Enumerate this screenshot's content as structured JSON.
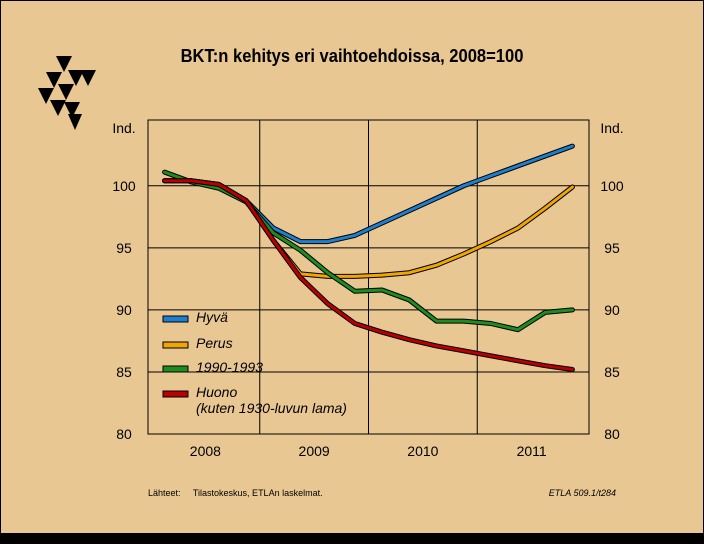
{
  "chart_data": {
    "type": "line",
    "title": "BKT:n kehitys eri vaihtoehdoissa, 2008=100",
    "ylabel": "Ind.",
    "y2label": "Ind.",
    "ylim": [
      80,
      105
    ],
    "yticks": [
      80,
      85,
      90,
      95,
      100
    ],
    "x_tick_labels": [
      "2008",
      "2009",
      "2010",
      "2011"
    ],
    "xlim": [
      2008.0,
      2012.0
    ],
    "grid": true,
    "legend_position": "bottom-left",
    "series": [
      {
        "name": "Hyvä",
        "color": "#1e7fd0",
        "points": [
          [
            2008.125,
            100.4
          ],
          [
            2008.375,
            100.4
          ],
          [
            2008.625,
            100.1
          ],
          [
            2008.875,
            98.8
          ],
          [
            2009.125,
            96.6
          ],
          [
            2009.375,
            95.5
          ],
          [
            2009.625,
            95.5
          ],
          [
            2009.875,
            96.0
          ],
          [
            2010.125,
            97.0
          ],
          [
            2010.375,
            98.0
          ],
          [
            2010.625,
            99.0
          ],
          [
            2010.875,
            100.0
          ],
          [
            2011.125,
            100.8
          ],
          [
            2011.375,
            101.6
          ],
          [
            2011.625,
            102.4
          ],
          [
            2011.875,
            103.2
          ]
        ]
      },
      {
        "name": "Perus",
        "color": "#f0a500",
        "points": [
          [
            2008.125,
            100.4
          ],
          [
            2008.375,
            100.4
          ],
          [
            2008.625,
            100.1
          ],
          [
            2008.875,
            98.8
          ],
          [
            2009.125,
            95.6
          ],
          [
            2009.375,
            92.9
          ],
          [
            2009.625,
            92.7
          ],
          [
            2009.875,
            92.7
          ],
          [
            2010.125,
            92.8
          ],
          [
            2010.375,
            93.0
          ],
          [
            2010.625,
            93.6
          ],
          [
            2010.875,
            94.5
          ],
          [
            2011.125,
            95.5
          ],
          [
            2011.375,
            96.6
          ],
          [
            2011.625,
            98.2
          ],
          [
            2011.875,
            99.9
          ]
        ]
      },
      {
        "name": "1990-1993",
        "color": "#1e8c1e",
        "points": [
          [
            2008.125,
            101.1
          ],
          [
            2008.375,
            100.3
          ],
          [
            2008.625,
            99.8
          ],
          [
            2008.875,
            98.7
          ],
          [
            2009.125,
            96.2
          ],
          [
            2009.375,
            94.8
          ],
          [
            2009.625,
            93.0
          ],
          [
            2009.875,
            91.5
          ],
          [
            2010.125,
            91.6
          ],
          [
            2010.375,
            90.8
          ],
          [
            2010.625,
            89.1
          ],
          [
            2010.875,
            89.1
          ],
          [
            2011.125,
            88.9
          ],
          [
            2011.375,
            88.4
          ],
          [
            2011.625,
            89.8
          ],
          [
            2011.875,
            90.0
          ]
        ]
      },
      {
        "name": "Huono\n(kuten 1930-luvun lama)",
        "color": "#b80000",
        "points": [
          [
            2008.125,
            100.4
          ],
          [
            2008.375,
            100.4
          ],
          [
            2008.625,
            100.1
          ],
          [
            2008.875,
            98.8
          ],
          [
            2009.125,
            95.6
          ],
          [
            2009.375,
            92.6
          ],
          [
            2009.625,
            90.5
          ],
          [
            2009.875,
            88.9
          ],
          [
            2010.125,
            88.2
          ],
          [
            2010.375,
            87.6
          ],
          [
            2010.625,
            87.1
          ],
          [
            2010.875,
            86.7
          ],
          [
            2011.125,
            86.3
          ],
          [
            2011.375,
            85.9
          ],
          [
            2011.625,
            85.5
          ],
          [
            2011.875,
            85.2
          ]
        ]
      }
    ]
  },
  "legend": {
    "items": [
      {
        "line1": "Hyvä",
        "line2": ""
      },
      {
        "line1": "Perus",
        "line2": ""
      },
      {
        "line1": "1990-1993",
        "line2": ""
      },
      {
        "line1": "Huono",
        "line2": "(kuten 1930-luvun lama)"
      }
    ]
  },
  "footer": {
    "source_label": "Lähteet:",
    "source_text": "Tilastokeskus, ETLAn laskelmat.",
    "code": "ETLA 509.1/t284"
  }
}
